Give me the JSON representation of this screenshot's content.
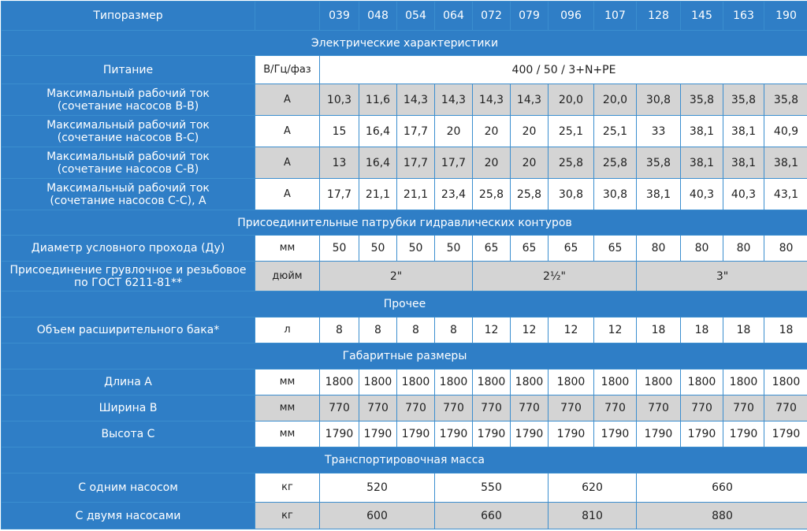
{
  "header": {
    "label": "Типоразмер",
    "sizes": [
      "039",
      "048",
      "054",
      "064",
      "072",
      "079",
      "096",
      "107",
      "128",
      "145",
      "163",
      "190"
    ]
  },
  "sections": {
    "electrical": "Электрические характеристики",
    "hydraulic": "Присоединительные патрубки гидравлических контуров",
    "other": "Прочее",
    "dimensions": "Габаритные размеры",
    "transport": "Транспортировочная масса"
  },
  "power": {
    "label": "Питание",
    "unit": "В/Гц/фаз",
    "value": "400 / 50 / 3+N+PE"
  },
  "current_rows": [
    {
      "label_line1": "Максимальный рабочий ток",
      "label_line2": "(сочетание насосов В-В)",
      "unit": "А",
      "values": [
        "10,3",
        "11,6",
        "14,3",
        "14,3",
        "14,3",
        "14,3",
        "20,0",
        "20,0",
        "30,8",
        "35,8",
        "35,8",
        "35,8"
      ]
    },
    {
      "label_line1": "Максимальный рабочий ток",
      "label_line2": "(сочетание насосов В-С)",
      "unit": "А",
      "values": [
        "15",
        "16,4",
        "17,7",
        "20",
        "20",
        "20",
        "25,1",
        "25,1",
        "33",
        "38,1",
        "38,1",
        "40,9"
      ]
    },
    {
      "label_line1": "Максимальный рабочий ток",
      "label_line2": "(сочетание насосов С-В)",
      "unit": "А",
      "values": [
        "13",
        "16,4",
        "17,7",
        "17,7",
        "20",
        "20",
        "25,8",
        "25,8",
        "35,8",
        "38,1",
        "38,1",
        "38,1"
      ]
    },
    {
      "label_line1": "Максимальный рабочий ток",
      "label_line2": "(сочетание насосов С-С), А",
      "unit": "А",
      "values": [
        "17,7",
        "21,1",
        "21,1",
        "23,4",
        "25,8",
        "25,8",
        "30,8",
        "30,8",
        "38,1",
        "40,3",
        "40,3",
        "43,1"
      ]
    }
  ],
  "nominal_diameter": {
    "label": "Диаметр условного прохода (Ду)",
    "unit": "мм",
    "values": [
      "50",
      "50",
      "50",
      "50",
      "65",
      "65",
      "65",
      "65",
      "80",
      "80",
      "80",
      "80"
    ]
  },
  "connection": {
    "label_line1": "Присоединение грувлочное и резьбовое",
    "label_line2": "по ГОСТ 6211-81**",
    "unit": "дюйм",
    "values": [
      "2\"",
      "2½\"",
      "3\""
    ]
  },
  "tank": {
    "label": "Объем расширительного бака*",
    "unit": "л",
    "values": [
      "8",
      "8",
      "8",
      "8",
      "12",
      "12",
      "12",
      "12",
      "18",
      "18",
      "18",
      "18"
    ]
  },
  "length": {
    "label": "Длина А",
    "unit": "мм",
    "values": [
      "1800",
      "1800",
      "1800",
      "1800",
      "1800",
      "1800",
      "1800",
      "1800",
      "1800",
      "1800",
      "1800",
      "1800"
    ]
  },
  "width": {
    "label": "Ширина В",
    "unit": "мм",
    "values": [
      "770",
      "770",
      "770",
      "770",
      "770",
      "770",
      "770",
      "770",
      "770",
      "770",
      "770",
      "770"
    ]
  },
  "height": {
    "label": "Высота С",
    "unit": "мм",
    "values": [
      "1790",
      "1790",
      "1790",
      "1790",
      "1790",
      "1790",
      "1790",
      "1790",
      "1790",
      "1790",
      "1790",
      "1790"
    ]
  },
  "mass_one": {
    "label": "С одним насосом",
    "unit": "кг",
    "values": [
      "520",
      "550",
      "620",
      "660"
    ]
  },
  "mass_two": {
    "label": "С двумя насосами",
    "unit": "кг",
    "values": [
      "600",
      "660",
      "810",
      "880"
    ]
  }
}
